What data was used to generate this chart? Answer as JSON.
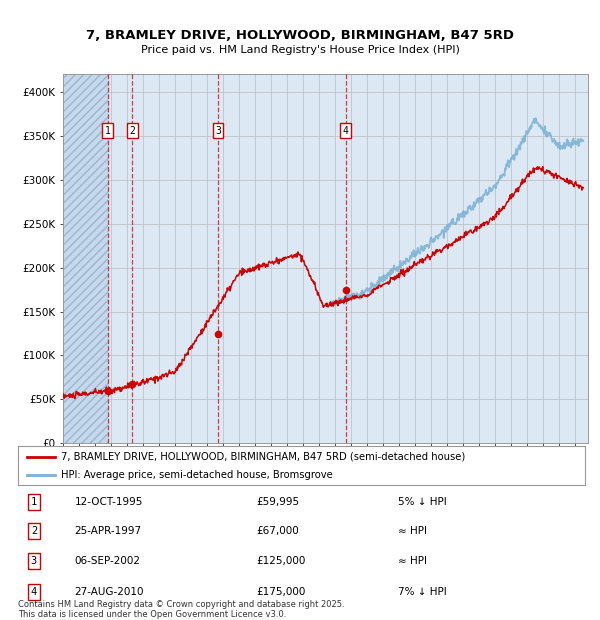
{
  "title": "7, BRAMLEY DRIVE, HOLLYWOOD, BIRMINGHAM, B47 5RD",
  "subtitle": "Price paid vs. HM Land Registry's House Price Index (HPI)",
  "bg_color": "#dce9f5",
  "grid_color": "#bbbbbb",
  "red_line_color": "#cc0000",
  "blue_line_color": "#7ab0d4",
  "purchases": [
    {
      "num": 1,
      "date_year": 1995.79,
      "price": 59995,
      "label": "12-OCT-1995",
      "amount": "£59,995",
      "note": "5% ↓ HPI"
    },
    {
      "num": 2,
      "date_year": 1997.32,
      "price": 67000,
      "label": "25-APR-1997",
      "amount": "£67,000",
      "note": "≈ HPI"
    },
    {
      "num": 3,
      "date_year": 2002.68,
      "price": 125000,
      "label": "06-SEP-2002",
      "amount": "£125,000",
      "note": "≈ HPI"
    },
    {
      "num": 4,
      "date_year": 2010.65,
      "price": 175000,
      "label": "27-AUG-2010",
      "amount": "£175,000",
      "note": "7% ↓ HPI"
    }
  ],
  "ylim": [
    0,
    420000
  ],
  "yticks": [
    0,
    50000,
    100000,
    150000,
    200000,
    250000,
    300000,
    350000,
    400000
  ],
  "ytick_labels": [
    "£0",
    "£50K",
    "£100K",
    "£150K",
    "£200K",
    "£250K",
    "£300K",
    "£350K",
    "£400K"
  ],
  "footnote": "Contains HM Land Registry data © Crown copyright and database right 2025.\nThis data is licensed under the Open Government Licence v3.0.",
  "legend_red": "7, BRAMLEY DRIVE, HOLLYWOOD, BIRMINGHAM, B47 5RD (semi-detached house)",
  "legend_blue": "HPI: Average price, semi-detached house, Bromsgrove",
  "xlim_start": 1993.0,
  "xlim_end": 2025.8
}
